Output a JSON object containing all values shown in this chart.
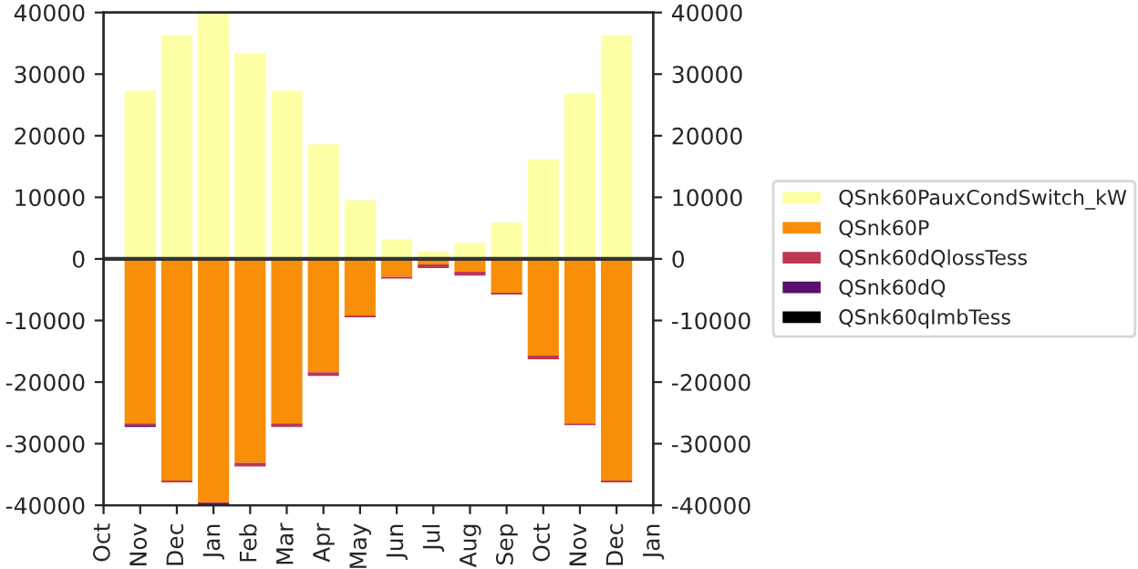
{
  "chart_data": {
    "type": "bar",
    "stacked": true,
    "categories": [
      "Oct",
      "Nov",
      "Dec",
      "Jan",
      "Feb",
      "Mar",
      "Apr",
      "May",
      "Jun",
      "Jul",
      "Aug",
      "Sep",
      "Oct",
      "Nov",
      "Dec",
      "Jan"
    ],
    "series": [
      {
        "name": "QSnk60PauxCondSwitch_kW",
        "color": "#fcffa4",
        "values": [
          null,
          27300,
          36300,
          40000,
          33400,
          27300,
          18600,
          9500,
          3200,
          1200,
          2600,
          5900,
          16200,
          26900,
          36300,
          null
        ]
      },
      {
        "name": "QSnk60P",
        "color": "#f98e09",
        "values": [
          null,
          -26700,
          -36000,
          -39500,
          -33100,
          -26700,
          -18400,
          -9200,
          -2900,
          -900,
          -2100,
          -5500,
          -15700,
          -26700,
          -36000,
          null
        ]
      },
      {
        "name": "QSnk60dQlossTess",
        "color": "#bc3754",
        "values": [
          null,
          -300,
          -300,
          -200,
          -600,
          -600,
          -600,
          -300,
          -300,
          -600,
          -600,
          -300,
          -600,
          -300,
          -300,
          null
        ]
      },
      {
        "name": "QSnk60dQ",
        "color": "#57106e",
        "values": [
          null,
          -300,
          0,
          -200,
          0,
          0,
          0,
          0,
          0,
          0,
          0,
          0,
          0,
          0,
          0,
          null
        ]
      },
      {
        "name": "QSnk60qImbTess",
        "color": "#000004",
        "values": [
          null,
          0,
          0,
          0,
          0,
          0,
          0,
          0,
          0,
          0,
          0,
          0,
          0,
          0,
          0,
          null
        ]
      }
    ],
    "ylim": [
      -40000,
      40000
    ],
    "yticks": [
      -40000,
      -30000,
      -20000,
      -10000,
      0,
      10000,
      20000,
      30000,
      40000
    ],
    "y2lim": [
      -40000,
      40000
    ],
    "y2ticks": [
      -40000,
      -30000,
      -20000,
      -10000,
      0,
      10000,
      20000,
      30000,
      40000
    ],
    "ref_lines": [
      {
        "axis": "y",
        "value": 0,
        "color": "#333333"
      }
    ],
    "grid": false,
    "legend": "right"
  }
}
